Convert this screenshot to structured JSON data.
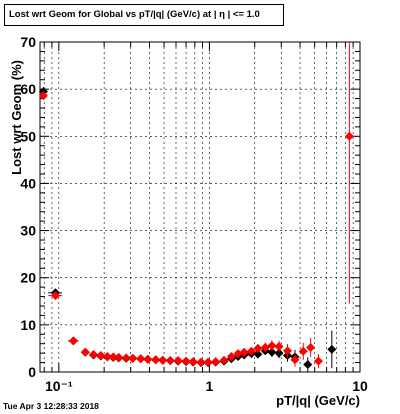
{
  "title": "Lost wrt Geom for Global vs pT/|q| (GeV/c) at |  η | <= 1.0",
  "timestamp": "Tue Apr  3 12:28:33 2018",
  "chart_data": {
    "type": "scatter",
    "title": "Lost wrt Geom for Global vs pT/|q| (GeV/c) at |  η | <= 1.0",
    "xlabel": "pT/|q| (GeV/c)",
    "ylabel": "Lost wrt Geom (%)",
    "x_scale": "log",
    "xlim": [
      0.075,
      10
    ],
    "ylim": [
      0,
      70
    ],
    "x_major_ticks": [
      0.1,
      1,
      10
    ],
    "x_tick_labels": [
      "10⁻¹",
      "1",
      "10"
    ],
    "y_ticks": [
      0,
      10,
      20,
      30,
      40,
      50,
      60,
      70
    ],
    "y_tick_labels": [
      "0",
      "10",
      "20",
      "30",
      "40",
      "50",
      "60",
      "70"
    ],
    "grid": true,
    "series": [
      {
        "color": "#000000",
        "marker": "diamond",
        "points": [
          {
            "x": 0.079,
            "y": 59.5,
            "xerr": [
              0.075,
              0.083
            ],
            "yerr": 0.6
          },
          {
            "x": 0.095,
            "y": 16.8,
            "xerr": [
              0.085,
              0.105
            ],
            "yerr": 0.8
          },
          {
            "x": 0.125,
            "y": 6.6,
            "xerr": [
              0.115,
              0.135
            ],
            "yerr": 0.5
          },
          {
            "x": 0.15,
            "y": 4.2
          },
          {
            "x": 0.17,
            "y": 3.6
          },
          {
            "x": 0.19,
            "y": 3.4
          },
          {
            "x": 0.21,
            "y": 3.2
          },
          {
            "x": 0.23,
            "y": 3.1
          },
          {
            "x": 0.25,
            "y": 3.0
          },
          {
            "x": 0.28,
            "y": 2.9
          },
          {
            "x": 0.31,
            "y": 2.9
          },
          {
            "x": 0.35,
            "y": 2.8
          },
          {
            "x": 0.39,
            "y": 2.7
          },
          {
            "x": 0.44,
            "y": 2.6
          },
          {
            "x": 0.49,
            "y": 2.5
          },
          {
            "x": 0.55,
            "y": 2.4
          },
          {
            "x": 0.62,
            "y": 2.3
          },
          {
            "x": 0.7,
            "y": 2.2
          },
          {
            "x": 0.78,
            "y": 2.1
          },
          {
            "x": 0.88,
            "y": 2.0
          },
          {
            "x": 0.98,
            "y": 2.0
          },
          {
            "x": 1.1,
            "y": 2.1
          },
          {
            "x": 1.25,
            "y": 2.3
          },
          {
            "x": 1.4,
            "y": 2.8
          },
          {
            "x": 1.55,
            "y": 3.3
          },
          {
            "x": 1.7,
            "y": 3.6
          },
          {
            "x": 1.9,
            "y": 3.9
          },
          {
            "x": 2.1,
            "y": 3.8,
            "yerr": 0.8
          },
          {
            "x": 2.35,
            "y": 4.5,
            "yerr": 0.9
          },
          {
            "x": 2.6,
            "y": 4.2,
            "yerr": 1.0
          },
          {
            "x": 2.9,
            "y": 4.0,
            "yerr": 1.1
          },
          {
            "x": 3.3,
            "y": 3.5,
            "yerr": 1.3
          },
          {
            "x": 3.7,
            "y": 3.2,
            "yerr": 1.5
          },
          {
            "x": 4.5,
            "y": 1.6,
            "yerr": 1.5
          },
          {
            "x": 6.5,
            "y": 4.8,
            "yerr": 4.0
          }
        ]
      },
      {
        "color": "#ff0000",
        "marker": "diamond",
        "points": [
          {
            "x": 0.079,
            "y": 58.6,
            "xerr": [
              0.075,
              0.083
            ],
            "yerr": 0.6
          },
          {
            "x": 0.095,
            "y": 16.2,
            "xerr": [
              0.085,
              0.105
            ],
            "yerr": 0.8
          },
          {
            "x": 0.125,
            "y": 6.6,
            "xerr": [
              0.115,
              0.135
            ],
            "yerr": 0.5
          },
          {
            "x": 0.15,
            "y": 4.2
          },
          {
            "x": 0.17,
            "y": 3.7
          },
          {
            "x": 0.19,
            "y": 3.5
          },
          {
            "x": 0.21,
            "y": 3.3
          },
          {
            "x": 0.23,
            "y": 3.2
          },
          {
            "x": 0.25,
            "y": 3.1
          },
          {
            "x": 0.28,
            "y": 3.0
          },
          {
            "x": 0.31,
            "y": 2.9
          },
          {
            "x": 0.35,
            "y": 2.8
          },
          {
            "x": 0.39,
            "y": 2.7
          },
          {
            "x": 0.44,
            "y": 2.6
          },
          {
            "x": 0.49,
            "y": 2.5
          },
          {
            "x": 0.55,
            "y": 2.4
          },
          {
            "x": 0.62,
            "y": 2.4
          },
          {
            "x": 0.7,
            "y": 2.3
          },
          {
            "x": 0.78,
            "y": 2.2
          },
          {
            "x": 0.88,
            "y": 2.1
          },
          {
            "x": 0.98,
            "y": 2.1
          },
          {
            "x": 1.1,
            "y": 2.2
          },
          {
            "x": 1.25,
            "y": 2.5
          },
          {
            "x": 1.4,
            "y": 3.3
          },
          {
            "x": 1.55,
            "y": 3.9
          },
          {
            "x": 1.7,
            "y": 4.2
          },
          {
            "x": 1.9,
            "y": 4.4
          },
          {
            "x": 2.1,
            "y": 5.0,
            "yerr": 0.9
          },
          {
            "x": 2.35,
            "y": 5.2,
            "yerr": 1.0
          },
          {
            "x": 2.6,
            "y": 5.6,
            "yerr": 1.1
          },
          {
            "x": 2.9,
            "y": 5.4,
            "yerr": 1.2
          },
          {
            "x": 3.3,
            "y": 4.5,
            "yerr": 1.4
          },
          {
            "x": 3.7,
            "y": 2.6,
            "yerr": 1.5
          },
          {
            "x": 4.2,
            "y": 4.4,
            "yerr": 1.8
          },
          {
            "x": 4.7,
            "y": 5.2,
            "yerr": 2.0
          },
          {
            "x": 5.3,
            "y": 2.3,
            "yerr": 1.5
          },
          {
            "x": 8.5,
            "y": 50,
            "yerr": [
              14.5,
              70
            ]
          }
        ]
      }
    ]
  }
}
